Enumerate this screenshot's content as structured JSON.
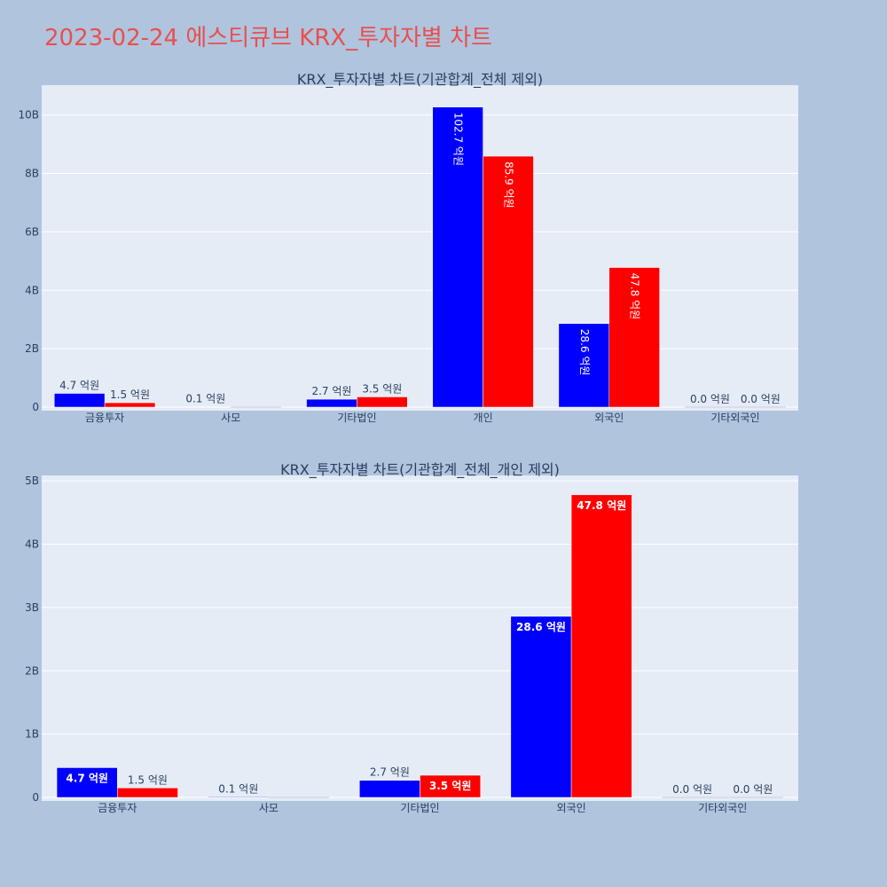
{
  "page": {
    "title": "2023-02-24 에스티큐브 KRX_투자자별 차트"
  },
  "colors": {
    "buy": "#0000ff",
    "sell": "#ff0000",
    "plot_bg": "#e5ecf6",
    "paper_bg": "#b0c4de",
    "title": "#e8504f"
  },
  "chart_data": [
    {
      "type": "bar",
      "title": "KRX_투자자별 차트(기관합계_전체 제외)",
      "categories": [
        "금융투자",
        "사모",
        "기타법인",
        "개인",
        "외국인",
        "기타외국인"
      ],
      "series": [
        {
          "values": [
            470000000,
            10000000,
            270000000,
            10270000000,
            2860000000,
            0
          ],
          "labels": [
            "4.7 억원",
            "0.1 억원",
            "2.7 억원",
            "102.7 억원",
            "28.6 억원",
            "0.0 억원"
          ]
        },
        {
          "values": [
            150000000,
            0,
            350000000,
            8590000000,
            4780000000,
            0
          ],
          "labels": [
            "1.5 억원",
            "",
            "3.5 억원",
            "85.9 억원",
            "47.8 억원",
            "0.0 억원"
          ]
        }
      ],
      "ylim": [
        0,
        10900000000
      ],
      "yticks": [
        0,
        2000000000,
        4000000000,
        6000000000,
        8000000000,
        10000000000
      ],
      "ytick_labels": [
        "0",
        "2B",
        "4B",
        "6B",
        "8B",
        "10B"
      ],
      "inside_label_style": "rotated",
      "grid": true
    },
    {
      "type": "bar",
      "title": "KRX_투자자별 차트(기관합계_전체_개인 제외)",
      "categories": [
        "금융투자",
        "사모",
        "기타법인",
        "외국인",
        "기타외국인"
      ],
      "series": [
        {
          "values": [
            470000000,
            10000000,
            270000000,
            2860000000,
            0
          ],
          "labels": [
            "4.7 억원",
            "0.1 억원",
            "2.7 억원",
            "28.6 억원",
            "0.0 억원"
          ]
        },
        {
          "values": [
            150000000,
            0,
            350000000,
            4780000000,
            0
          ],
          "labels": [
            "1.5 억원",
            "",
            "3.5 억원",
            "47.8 억원",
            "0.0 억원"
          ]
        }
      ],
      "ylim": [
        0,
        5030000000
      ],
      "yticks": [
        0,
        1000000000,
        2000000000,
        3000000000,
        4000000000,
        5000000000
      ],
      "ytick_labels": [
        "0",
        "1B",
        "2B",
        "3B",
        "4B",
        "5B"
      ],
      "inside_label_style": "horizontal",
      "grid": true
    }
  ]
}
